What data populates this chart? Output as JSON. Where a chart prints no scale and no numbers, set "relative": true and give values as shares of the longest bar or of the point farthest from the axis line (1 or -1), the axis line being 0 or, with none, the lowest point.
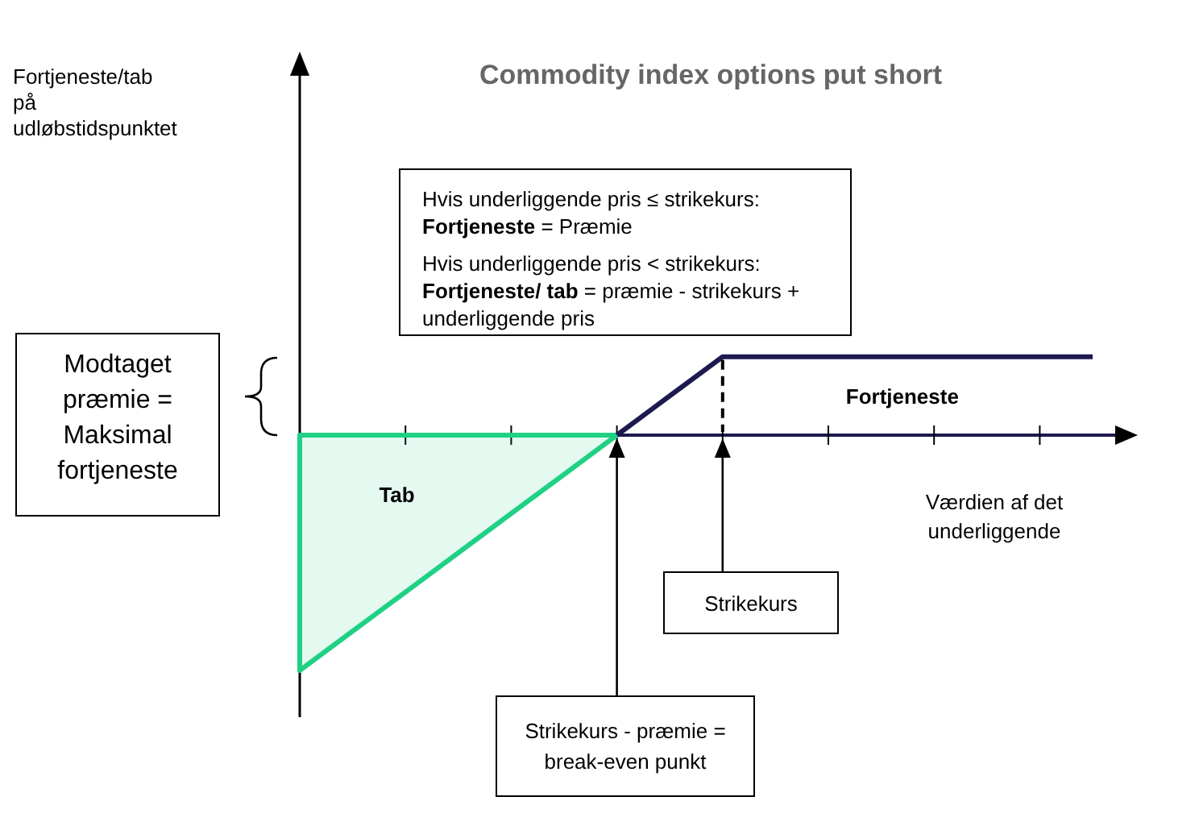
{
  "chart_data": {
    "type": "line",
    "title": "Commodity index options put short",
    "xlabel": "Værdien af det underliggende",
    "categories": [
      null,
      null,
      null,
      null,
      null,
      null,
      null,
      null,
      null,
      null,
      null,
      null,
      null,
      null,
      null,
      null
    ],
    "relative": true,
    "series": [
      {
        "name": "Tab",
        "type": "area",
        "color": "#1fd184",
        "values": [
          -1,
          -0.833,
          -0.667,
          -0.5,
          -0.333,
          -0.167,
          0,
          null,
          null,
          null,
          null,
          null,
          null,
          null,
          null,
          null
        ]
      },
      {
        "name": "Fortjeneste",
        "color": "#1c1a4f",
        "values": [
          null,
          null,
          null,
          null,
          null,
          null,
          0,
          0.167,
          0.333,
          0.333,
          0.333,
          0.333,
          0.333,
          0.333,
          0.333,
          0.333
        ]
      }
    ],
    "annotations": [
      "Hvis underliggende pris ≤ strikekurs:",
      "Fortjeneste = Præmie",
      "Hvis underliggende pris < strikekurs:",
      "Fortjeneste/ tab = præmie - strikekurs + underliggende pris",
      "Modtaget præmie = Maksimal fortjeneste",
      "Strikekurs",
      "Strikekurs - præmie = break-even punkt",
      "Fortjeneste/tab på udløbstidspunktet"
    ]
  }
}
